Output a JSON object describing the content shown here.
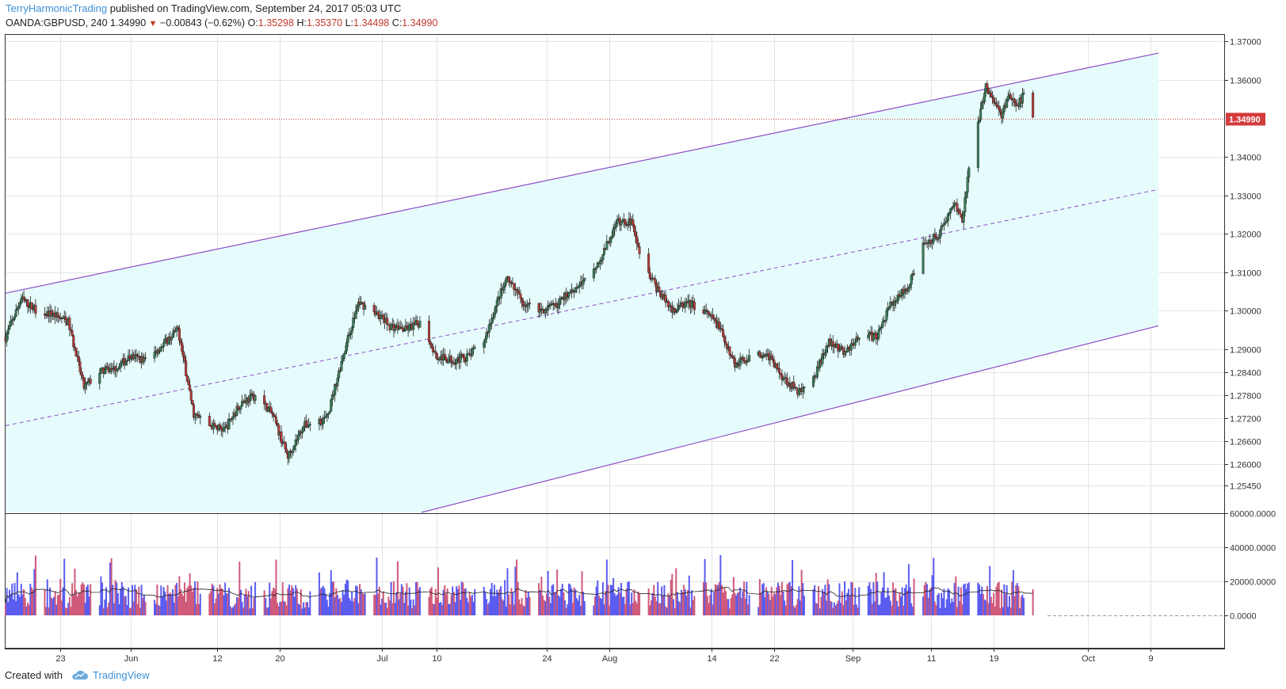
{
  "header": {
    "author": "TerryHarmonicTrading",
    "published": "published on TradingView.com, September 24, 2017 05:03 UTC",
    "symbol": "OANDA:GBPUSD, 240",
    "last": "1.34990",
    "change": "−0.00843 (−0.62%)",
    "o_label": "O:",
    "o_val": "1.35298",
    "h_label": "H:",
    "h_val": "1.35370",
    "l_label": "L:",
    "l_val": "1.34498",
    "c_label": "C:",
    "c_val": "1.34990"
  },
  "footer": {
    "created": "Created with",
    "brand": "TradingView"
  },
  "colors": {
    "up": "#3a7d5a",
    "down": "#b53b3b",
    "channel_fill": "#e6fbfb",
    "channel_line": "#8e4ec6",
    "price_line": "#d43b3b",
    "vol_up": "#5a5cf0",
    "vol_down": "#d05a7a",
    "vol_ma": "#222222"
  },
  "chart_data": {
    "type": "candlestick",
    "symbol": "OANDA:GBPUSD",
    "timeframe": "240",
    "price_axis": {
      "ticks": [
        "1.37000",
        "1.36000",
        "1.34000",
        "1.33000",
        "1.32000",
        "1.31000",
        "1.30000",
        "1.29000",
        "1.28400",
        "1.27800",
        "1.27200",
        "1.26600",
        "1.26000",
        "1.25450"
      ],
      "current_price": "1.34990"
    },
    "volume_axis": {
      "ticks": [
        "60000.0000",
        "40000.0000",
        "20000.0000",
        "0.0000"
      ]
    },
    "x_ticks": [
      "23",
      "Jun",
      "12",
      "20",
      "Jul",
      "10",
      "24",
      "Aug",
      "14",
      "22",
      "Sep",
      "11",
      "19",
      "Oct",
      "9"
    ],
    "channel": {
      "upper": {
        "start": [
          "2017-05-16",
          1.3045
        ],
        "end": [
          "2017-10-10",
          1.367
        ]
      },
      "middle": {
        "start": [
          "2017-05-16",
          1.27
        ],
        "end": [
          "2017-10-10",
          1.3315
        ]
      },
      "lower": {
        "start": [
          "2017-05-16",
          1.22
        ],
        "end": [
          "2017-10-10",
          1.296
        ]
      }
    },
    "price_path": [
      [
        "2017-05-16",
        1.293
      ],
      [
        "2017-05-18",
        1.303
      ],
      [
        "2017-05-20",
        1.3
      ],
      [
        "2017-05-22",
        1.299
      ],
      [
        "2017-05-24",
        1.297
      ],
      [
        "2017-05-26",
        1.28
      ],
      [
        "2017-05-28",
        1.284
      ],
      [
        "2017-05-30",
        1.285
      ],
      [
        "2017-06-01",
        1.288
      ],
      [
        "2017-06-03",
        1.287
      ],
      [
        "2017-06-05",
        1.291
      ],
      [
        "2017-06-07",
        1.295
      ],
      [
        "2017-06-09",
        1.273
      ],
      [
        "2017-06-11",
        1.27
      ],
      [
        "2017-06-13",
        1.269
      ],
      [
        "2017-06-15",
        1.276
      ],
      [
        "2017-06-17",
        1.278
      ],
      [
        "2017-06-19",
        1.273
      ],
      [
        "2017-06-21",
        1.262
      ],
      [
        "2017-06-23",
        1.27
      ],
      [
        "2017-06-26",
        1.272
      ],
      [
        "2017-06-28",
        1.288
      ],
      [
        "2017-06-30",
        1.302
      ],
      [
        "2017-07-02",
        1.3
      ],
      [
        "2017-07-04",
        1.296
      ],
      [
        "2017-07-06",
        1.295
      ],
      [
        "2017-07-08",
        1.297
      ],
      [
        "2017-07-10",
        1.288
      ],
      [
        "2017-07-12",
        1.287
      ],
      [
        "2017-07-14",
        1.288
      ],
      [
        "2017-07-16",
        1.292
      ],
      [
        "2017-07-18",
        1.304
      ],
      [
        "2017-07-19",
        1.308
      ],
      [
        "2017-07-21",
        1.302
      ],
      [
        "2017-07-23",
        1.3
      ],
      [
        "2017-07-25",
        1.301
      ],
      [
        "2017-07-27",
        1.305
      ],
      [
        "2017-07-29",
        1.308
      ],
      [
        "2017-07-31",
        1.314
      ],
      [
        "2017-08-02",
        1.323
      ],
      [
        "2017-08-04",
        1.323
      ],
      [
        "2017-08-05",
        1.314
      ],
      [
        "2017-08-07",
        1.306
      ],
      [
        "2017-08-09",
        1.3
      ],
      [
        "2017-08-11",
        1.302
      ],
      [
        "2017-08-13",
        1.3
      ],
      [
        "2017-08-15",
        1.296
      ],
      [
        "2017-08-17",
        1.286
      ],
      [
        "2017-08-19",
        1.288
      ],
      [
        "2017-08-21",
        1.289
      ],
      [
        "2017-08-23",
        1.283
      ],
      [
        "2017-08-25",
        1.279
      ],
      [
        "2017-08-27",
        1.282
      ],
      [
        "2017-08-29",
        1.292
      ],
      [
        "2017-08-31",
        1.289
      ],
      [
        "2017-09-02",
        1.294
      ],
      [
        "2017-09-04",
        1.293
      ],
      [
        "2017-09-06",
        1.302
      ],
      [
        "2017-09-08",
        1.306
      ],
      [
        "2017-09-10",
        1.317
      ],
      [
        "2017-09-12",
        1.32
      ],
      [
        "2017-09-14",
        1.328
      ],
      [
        "2017-09-15",
        1.324
      ],
      [
        "2017-09-16",
        1.339
      ],
      [
        "2017-09-18",
        1.358
      ],
      [
        "2017-09-20",
        1.351
      ],
      [
        "2017-09-21",
        1.356
      ],
      [
        "2017-09-22",
        1.353
      ],
      [
        "2017-09-23",
        1.357
      ],
      [
        "2017-09-24",
        1.3499
      ]
    ]
  }
}
